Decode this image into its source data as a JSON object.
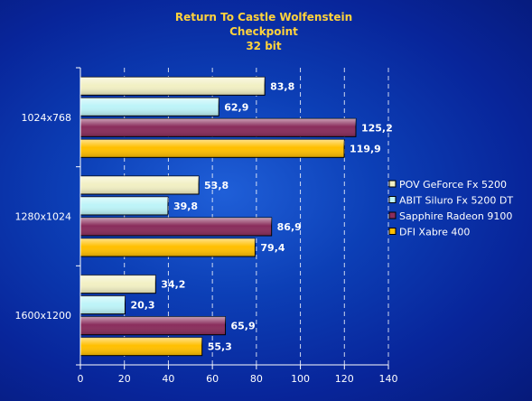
{
  "chart_data": {
    "type": "bar",
    "orientation": "horizontal",
    "title": [
      "Return To Castle Wolfenstein",
      "Checkpoint",
      "32 bit"
    ],
    "categories": [
      "1024x768",
      "1280x1024",
      "1600x1200"
    ],
    "series": [
      {
        "name": "POV GeForce Fx 5200",
        "values": [
          83.8,
          53.8,
          34.2
        ],
        "value_labels": [
          "83,8",
          "53,8",
          "34,2"
        ],
        "color": "#f2f0c4"
      },
      {
        "name": "ABIT Siluro Fx 5200 DT",
        "values": [
          62.9,
          39.8,
          20.3
        ],
        "value_labels": [
          "62,9",
          "39,8",
          "20,3"
        ],
        "color": "#bdf4f8"
      },
      {
        "name": "Sapphire Radeon 9100",
        "values": [
          125.2,
          86.9,
          65.9
        ],
        "value_labels": [
          "125,2",
          "86,9",
          "65,9"
        ],
        "color": "#8a2d5c"
      },
      {
        "name": "DFI Xabre 400",
        "values": [
          119.9,
          79.4,
          55.3
        ],
        "value_labels": [
          "119,9",
          "79,4",
          "55,3"
        ],
        "color": "#ffbf00"
      }
    ],
    "xlim": [
      0,
      140
    ],
    "xticks": [
      "0",
      "20",
      "40",
      "60",
      "80",
      "100",
      "120",
      "140"
    ],
    "grid": "vertical dashed",
    "legend": "right"
  }
}
